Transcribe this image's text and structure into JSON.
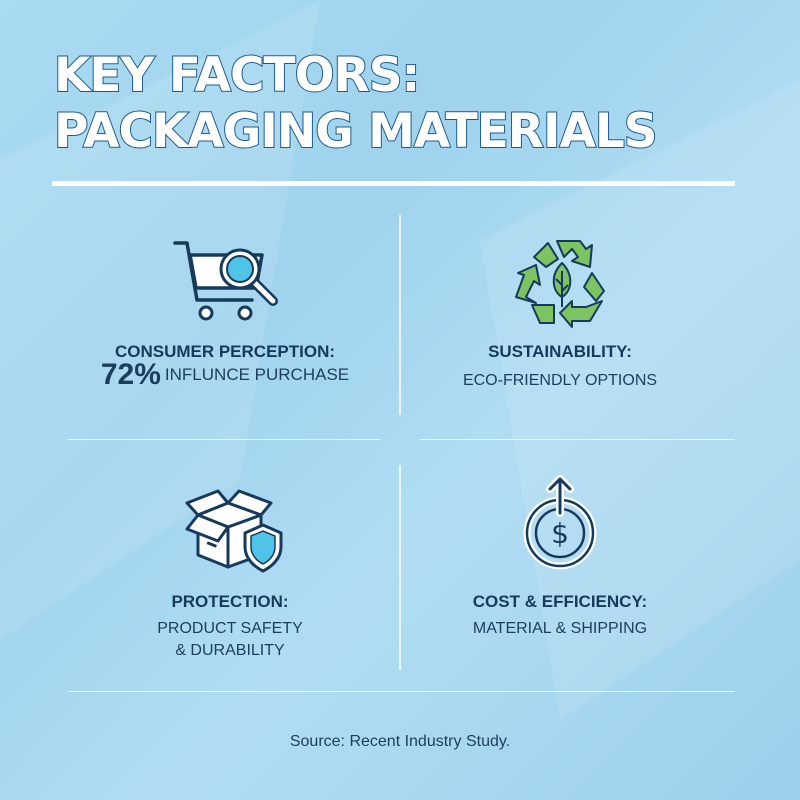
{
  "title": {
    "line1": "KEY FACTORS:",
    "line2": "PACKAGING MATERIALS"
  },
  "colors": {
    "background": "#a6d8f0",
    "text": "#163a5c",
    "accent_green": "#7cc361",
    "accent_blue": "#4fc3e8"
  },
  "factors": [
    {
      "icon": "shopping-cart-magnifier-icon",
      "heading": "CONSUMER PERCEPTION:",
      "stat": "72%",
      "detail": "INFLUNCE PURCHASE"
    },
    {
      "icon": "recycle-leaf-icon",
      "heading": "SUSTAINABILITY:",
      "detail": "ECO-FRIENDLY OPTIONS"
    },
    {
      "icon": "box-shield-icon",
      "heading": "PROTECTION:",
      "detail_line1": "PRODUCT SAFETY",
      "detail_line2": "& DURABILITY"
    },
    {
      "icon": "dollar-coin-arrow-icon",
      "heading": "COST & EFFICIENCY:",
      "detail": "MATERIAL & SHIPPING"
    }
  ],
  "source": "Source: Recent Industry Study."
}
